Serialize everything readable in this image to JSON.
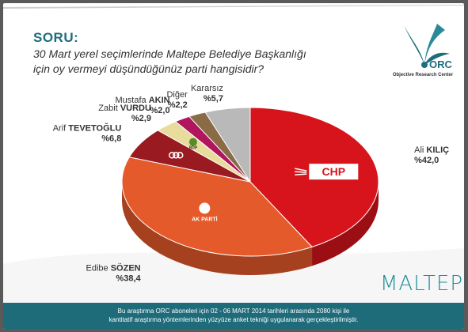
{
  "question": {
    "label": "SORU:",
    "line1": "30 Mart yerel seçimlerinde Maltepe Belediye Başkanlığı",
    "line2": "için oy vermeyi düşündüğünüz parti hangisidir?"
  },
  "logo": {
    "brand": "ORC",
    "subtitle": "Objective Research Center",
    "color": "#1e6d7c"
  },
  "district": "MALTEPE",
  "footer": {
    "line1": "Bu araştırma ORC aboneleri için 02 - 06 MART 2014 tarihleri arasında  2080 kişi ile",
    "line2": "kantitatif araştırma yöntemlerinden yüzyüze anket tekniği  uygulanarak gerçekleştirilmiştir."
  },
  "chart_data": {
    "type": "pie",
    "slices": [
      {
        "first": "Ali",
        "last": "KILIÇ",
        "value": 42.0,
        "value_label": "%42,0",
        "color": "#d7141c",
        "party_mark": "CHP"
      },
      {
        "first": "Edibe",
        "last": "SÖZEN",
        "value": 38.4,
        "value_label": "%38,4",
        "color": "#e55a2b",
        "party_mark": "AK PARTİ"
      },
      {
        "first": "Arif",
        "last": "TEVETOĞLU",
        "value": 6.8,
        "value_label": "%6,8",
        "color": "#9a1a22",
        "party_mark": "MHP"
      },
      {
        "first": "Zabit",
        "last": "VURDU",
        "value": 2.9,
        "value_label": "%2,9",
        "color": "#e8dc9c",
        "party_mark": "BDP"
      },
      {
        "first": "Mustafa",
        "last": "AKIN",
        "value": 2.0,
        "value_label": "%2,0",
        "color": "#b0155e",
        "party_mark": ""
      },
      {
        "first": "Diğer",
        "last": "",
        "value": 2.2,
        "value_label": "%2,2",
        "color": "#8b6a46",
        "party_mark": ""
      },
      {
        "first": "Kararsız",
        "last": "",
        "value": 5.7,
        "value_label": "%5,7",
        "color": "#b9b9b9",
        "party_mark": ""
      }
    ]
  }
}
